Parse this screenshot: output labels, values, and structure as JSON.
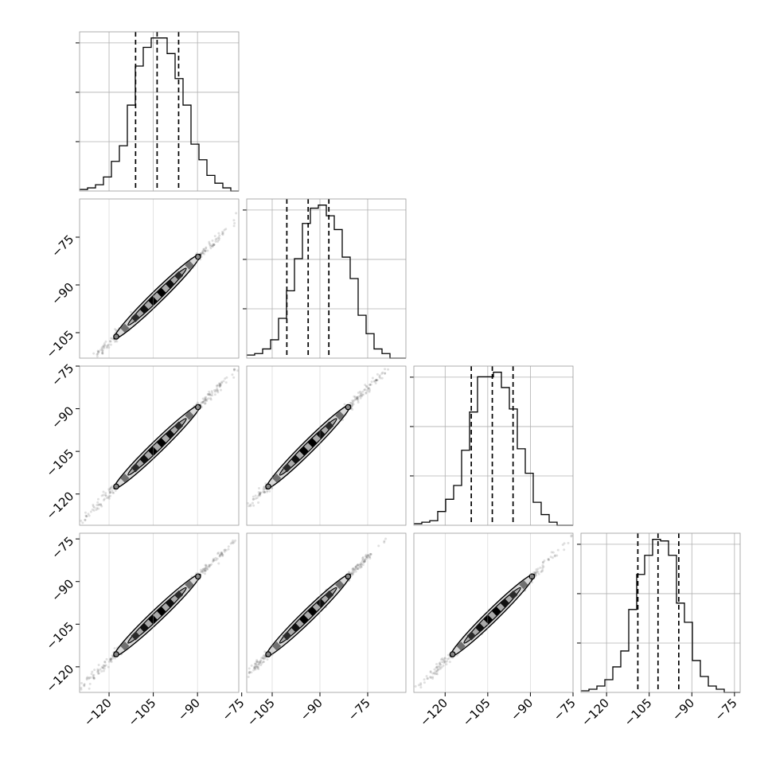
{
  "chart_data": {
    "type": "corner",
    "n_params": 4,
    "diagonal": {
      "type": "histogram",
      "bins_per_axis": 20,
      "quantile_markers": [
        "16%",
        "50%",
        "84%"
      ]
    },
    "histograms": [
      {
        "param_index": 0,
        "xlim": [
          -130,
          -76
        ],
        "edges_start": -130,
        "bin_width": 2.7,
        "counts": [
          1,
          2,
          4,
          9,
          19,
          29,
          55,
          80,
          92,
          98,
          98,
          88,
          72,
          55,
          30,
          20,
          10,
          5,
          2,
          0
        ],
        "quantiles": [
          -111,
          -103.7,
          -96.4
        ]
      },
      {
        "param_index": 1,
        "xlim": [
          -113,
          -63
        ],
        "edges_start": -113,
        "bin_width": 2.5,
        "counts": [
          2,
          3,
          6,
          12,
          26,
          44,
          65,
          88,
          98,
          100,
          93,
          84,
          66,
          52,
          28,
          16,
          6,
          3,
          0,
          0
        ],
        "quantiles": [
          -100.4,
          -93.7,
          -87.2
        ]
      },
      {
        "param_index": 2,
        "xlim": [
          -131,
          -75
        ],
        "edges_start": -131,
        "bin_width": 2.8,
        "counts": [
          1,
          2,
          3,
          9,
          17,
          26,
          49,
          74,
          97,
          97,
          100,
          90,
          76,
          50,
          34,
          15,
          7,
          2,
          0,
          0
        ],
        "quantiles": [
          -110.8,
          -103.4,
          -96.1
        ]
      },
      {
        "param_index": 3,
        "xlim": [
          -129,
          -73
        ],
        "edges_start": -129,
        "bin_width": 2.8,
        "counts": [
          1,
          2,
          4,
          8,
          16,
          26,
          52,
          74,
          86,
          96,
          95,
          86,
          56,
          44,
          20,
          10,
          4,
          2,
          0,
          0
        ],
        "quantiles": [
          -109,
          -101.9,
          -94.6
        ]
      }
    ],
    "panels_2d": [
      {
        "row": 1,
        "col": 0,
        "x_range": [
          -130,
          -76
        ],
        "y_range": [
          -113,
          -63
        ],
        "plot": "2d-density-contour"
      },
      {
        "row": 2,
        "col": 0,
        "x_range": [
          -130,
          -76
        ],
        "y_range": [
          -131,
          -75
        ],
        "plot": "2d-density-contour"
      },
      {
        "row": 2,
        "col": 1,
        "x_range": [
          -113,
          -63
        ],
        "y_range": [
          -131,
          -75
        ],
        "plot": "2d-density-contour"
      },
      {
        "row": 3,
        "col": 0,
        "x_range": [
          -130,
          -76
        ],
        "y_range": [
          -129,
          -73
        ],
        "plot": "2d-density-contour"
      },
      {
        "row": 3,
        "col": 1,
        "x_range": [
          -113,
          -63
        ],
        "y_range": [
          -129,
          -73
        ],
        "plot": "2d-density-contour"
      },
      {
        "row": 3,
        "col": 2,
        "x_range": [
          -131,
          -75
        ],
        "y_range": [
          -129,
          -73
        ],
        "plot": "2d-density-contour"
      }
    ],
    "x_tick_labels": [
      [
        "−120",
        "−105",
        "−90",
        "−75"
      ],
      [
        "−105",
        "−90",
        "−75"
      ],
      [
        "−120",
        "−105",
        "−90",
        "−75"
      ],
      [
        "−120",
        "−105",
        "−90",
        "−75"
      ]
    ],
    "y_tick_labels": [
      null,
      [
        "−75",
        "−90",
        "−105"
      ],
      [
        "−75",
        "−90",
        "−105",
        "−120"
      ],
      [
        "−75",
        "−90",
        "−105",
        "−120"
      ]
    ],
    "grid": true,
    "colors": {
      "line": "#000000",
      "grid": "#b0b0b0",
      "scatter": "#000000"
    }
  }
}
